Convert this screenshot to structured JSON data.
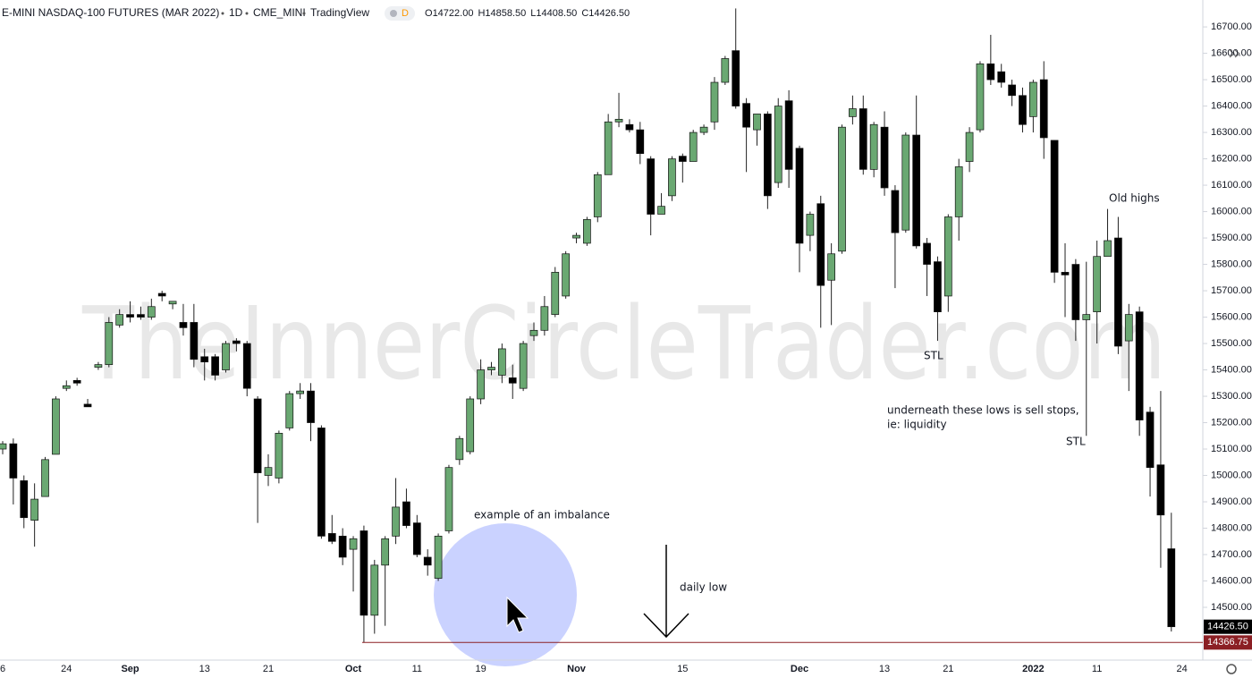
{
  "header": {
    "symbol": "E-MINI NASDAQ-100 FUTURES (MAR 2022)",
    "interval": "1D",
    "exchange": "CME_MINI",
    "source": "TradingView",
    "badge": "D",
    "ohlc": [
      {
        "label": "O",
        "value": "14722.00"
      },
      {
        "label": "H",
        "value": "14858.50"
      },
      {
        "label": "L",
        "value": "14408.50"
      },
      {
        "label": "C",
        "value": "14426.50"
      }
    ]
  },
  "chart_data": {
    "type": "candlestick",
    "categories": [
      "6",
      null,
      null,
      null,
      null,
      null,
      "24",
      null,
      null,
      null,
      null,
      null,
      "Sep",
      null,
      null,
      null,
      null,
      null,
      null,
      "13",
      null,
      null,
      null,
      null,
      null,
      "21",
      null,
      null,
      null,
      null,
      null,
      null,
      null,
      "Oct",
      null,
      null,
      null,
      null,
      null,
      "11",
      null,
      null,
      null,
      null,
      null,
      "19",
      null,
      null,
      null,
      null,
      null,
      null,
      null,
      null,
      "Nov",
      null,
      null,
      null,
      null,
      null,
      null,
      null,
      null,
      null,
      "15",
      null,
      null,
      null,
      null,
      null,
      null,
      null,
      null,
      null,
      null,
      "Dec",
      null,
      null,
      null,
      null,
      null,
      null,
      null,
      "13",
      null,
      null,
      null,
      null,
      null,
      "21",
      null,
      null,
      null,
      null,
      null,
      null,
      null,
      "2022",
      null,
      null,
      null,
      null,
      null,
      "11",
      null,
      null,
      null,
      null,
      null,
      null,
      null,
      "24"
    ],
    "open": [
      15100,
      15120,
      14980,
      14830,
      14920,
      15080,
      15330,
      15360,
      15270,
      15410,
      15420,
      15570,
      15610,
      15610,
      15600,
      15690,
      15650,
      15580,
      15580,
      15450,
      15450,
      15400,
      15510,
      15500,
      15290,
      15000,
      14990,
      15180,
      15310,
      15320,
      15180,
      14780,
      14770,
      14720,
      14790,
      14470,
      14660,
      14770,
      14900,
      14820,
      14690,
      14610,
      14790,
      15060,
      15090,
      15290,
      15400,
      15380,
      15370,
      15330,
      15530,
      15550,
      15610,
      15680,
      15900,
      15880,
      15980,
      16140,
      16340,
      16330,
      16310,
      16200,
      15990,
      16060,
      16210,
      16190,
      16300,
      16340,
      16490,
      16610,
      16410,
      16310,
      16370,
      16110,
      16420,
      16240,
      15910,
      16030,
      15740,
      15850,
      16360,
      16390,
      16160,
      16320,
      16080,
      15930,
      16290,
      15880,
      15810,
      15680,
      15980,
      16190,
      16310,
      16560,
      16530,
      16480,
      16440,
      16360,
      16500,
      16270,
      15770,
      15800,
      15590,
      15620,
      15830,
      15900,
      15510,
      15620,
      15240,
      15040,
      14722,
      null
    ],
    "high": [
      15130,
      15140,
      15000,
      14970,
      15070,
      15300,
      15360,
      15370,
      15290,
      15430,
      15600,
      15630,
      15660,
      15640,
      15670,
      15700,
      15660,
      15650,
      15650,
      15480,
      15460,
      15510,
      15520,
      15510,
      15300,
      15080,
      15170,
      15320,
      15350,
      15350,
      15190,
      14850,
      14800,
      14770,
      14810,
      14680,
      14770,
      14990,
      14950,
      14850,
      14720,
      14780,
      15040,
      15150,
      15300,
      15440,
      15430,
      15500,
      15420,
      15510,
      15580,
      15680,
      15790,
      15850,
      15920,
      15980,
      16150,
      16370,
      16450,
      16350,
      16340,
      16210,
      16070,
      16210,
      16220,
      16310,
      16330,
      16510,
      16590,
      16770,
      16430,
      16370,
      16380,
      16430,
      16460,
      16250,
      16000,
      16060,
      15880,
      16330,
      16440,
      16440,
      16340,
      16380,
      16100,
      16300,
      16440,
      15900,
      15830,
      15990,
      16200,
      16320,
      16570,
      16670,
      16560,
      16500,
      16470,
      16500,
      16570,
      16270,
      15880,
      15820,
      15810,
      15890,
      16010,
      15980,
      15650,
      15640,
      15260,
      15320,
      14858.5,
      null
    ],
    "low": [
      15080,
      14890,
      14800,
      14730,
      14920,
      15100,
      15320,
      15340,
      15260,
      15400,
      15410,
      15560,
      15580,
      15590,
      15590,
      15660,
      15630,
      15530,
      15410,
      15360,
      15360,
      15390,
      15470,
      15300,
      14820,
      14960,
      14970,
      15170,
      15290,
      15130,
      14760,
      14740,
      14660,
      14560,
      14366.75,
      14400,
      14430,
      14740,
      14800,
      14690,
      14620,
      14600,
      14780,
      15040,
      15080,
      15270,
      15380,
      15350,
      15290,
      15320,
      15510,
      15530,
      15600,
      15670,
      15880,
      15870,
      15960,
      16140,
      16320,
      16300,
      16180,
      15910,
      15990,
      16040,
      16110,
      16190,
      16290,
      16310,
      16480,
      16390,
      16150,
      16250,
      16010,
      16090,
      16090,
      15770,
      15850,
      15560,
      15570,
      15840,
      16330,
      16140,
      16130,
      16060,
      15710,
      15920,
      15860,
      15680,
      15510,
      15620,
      15890,
      16150,
      16300,
      16480,
      16470,
      16400,
      16300,
      16300,
      16200,
      15730,
      15600,
      15510,
      15150,
      15500,
      15830,
      15460,
      15320,
      15150,
      14920,
      14650,
      14408.5,
      null
    ],
    "close": [
      15120,
      14990,
      14840,
      14910,
      15060,
      15290,
      15340,
      15350,
      15260,
      15420,
      15580,
      15610,
      15600,
      15600,
      15640,
      15680,
      15660,
      15560,
      15440,
      15430,
      15380,
      15500,
      15500,
      15330,
      15010,
      15030,
      15160,
      15310,
      15320,
      15200,
      14770,
      14750,
      14690,
      14760,
      14470,
      14660,
      14760,
      14880,
      14810,
      14700,
      14660,
      14770,
      15030,
      15140,
      15290,
      15400,
      15410,
      15480,
      15350,
      15500,
      15550,
      15640,
      15770,
      15840,
      15910,
      15970,
      16140,
      16340,
      16350,
      16310,
      16220,
      15990,
      16020,
      16200,
      16190,
      16300,
      16320,
      16490,
      16580,
      16400,
      16320,
      16370,
      16060,
      16400,
      16160,
      15880,
      15990,
      15720,
      15840,
      16320,
      16390,
      16160,
      16330,
      16090,
      15920,
      16290,
      15870,
      15800,
      15620,
      15980,
      16170,
      16300,
      16560,
      16500,
      16490,
      16440,
      16330,
      16490,
      16280,
      15770,
      15760,
      15590,
      15610,
      15830,
      15890,
      15490,
      15610,
      15210,
      15030,
      14850,
      14426.5,
      null
    ],
    "up_color": "#6aa872",
    "down_color": "#000000",
    "ylim": [
      14300,
      16802
    ],
    "yticks": [
      {
        "value": 14500,
        "label": "14500.00"
      },
      {
        "value": 14600,
        "label": "14600.00"
      },
      {
        "value": 14700,
        "label": "14700.00"
      },
      {
        "value": 14800,
        "label": "14800.00"
      },
      {
        "value": 14900,
        "label": "14900.00"
      },
      {
        "value": 15000,
        "label": "15000.00"
      },
      {
        "value": 15100,
        "label": "15100.00"
      },
      {
        "value": 15200,
        "label": "15200.00"
      },
      {
        "value": 15300,
        "label": "15300.00"
      },
      {
        "value": 15400,
        "label": "15400.00"
      },
      {
        "value": 15500,
        "label": "15500.00"
      },
      {
        "value": 15600,
        "label": "15600.00"
      },
      {
        "value": 15700,
        "label": "15700.00"
      },
      {
        "value": 15800,
        "label": "15800.00"
      },
      {
        "value": 15900,
        "label": "15900.00"
      },
      {
        "value": 16000,
        "label": "16000.00"
      },
      {
        "value": 16100,
        "label": "16100.00"
      },
      {
        "value": 16200,
        "label": "16200.00"
      },
      {
        "value": 16300,
        "label": "16300.00"
      },
      {
        "value": 16400,
        "label": "16400.00"
      },
      {
        "value": 16500,
        "label": "16500.00"
      },
      {
        "value": 16600,
        "label": "16600.00"
      },
      {
        "value": 16700,
        "label": "16700.00"
      }
    ],
    "last_price": {
      "value": 14426.5,
      "label": "14426.50"
    },
    "low_line": {
      "value": 14366.75,
      "label": "14366.75",
      "color": "#8b1f24"
    },
    "watermark": "TheInnerCircleTrader.com",
    "annotations": [
      "example of an imbalance",
      "daily low",
      "STL",
      "underneath these lows is sell stops,",
      "ie: liquidity",
      "STL",
      "Old highs"
    ]
  }
}
